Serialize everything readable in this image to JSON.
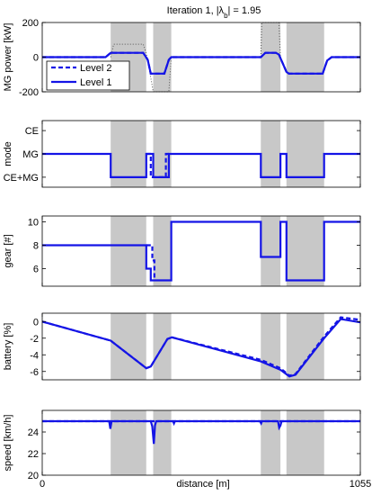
{
  "title": "Iteration 1, |λ_b| = 1.95",
  "xlabel": "distance [m]",
  "xlim": [
    0,
    1055
  ],
  "x_tick_labels": [
    "0",
    "1055"
  ],
  "legend": {
    "entries": [
      "Level 2",
      "Level 1"
    ],
    "placement": "lower-left of panel 1"
  },
  "colors": {
    "series": "#1414e6",
    "shade": "#c8c8c8",
    "reference": "#555555"
  },
  "regions": [
    [
      227,
      345
    ],
    [
      368,
      428
    ],
    [
      725,
      790
    ],
    [
      810,
      935
    ]
  ],
  "chart_data": [
    {
      "type": "line",
      "ylabel": "MG power [kW]",
      "ylim": [
        -200,
        200
      ],
      "yticks": [
        -200,
        0,
        200
      ],
      "series": [
        {
          "name": "Level 1",
          "style": "solid",
          "points": [
            [
              0,
              0
            ],
            [
              210,
              0
            ],
            [
              227,
              25
            ],
            [
              335,
              25
            ],
            [
              350,
              -15
            ],
            [
              360,
              -95
            ],
            [
              405,
              -95
            ],
            [
              420,
              -15
            ],
            [
              428,
              0
            ],
            [
              725,
              0
            ],
            [
              740,
              25
            ],
            [
              775,
              25
            ],
            [
              785,
              15
            ],
            [
              810,
              -85
            ],
            [
              818,
              -95
            ],
            [
              930,
              -95
            ],
            [
              945,
              -20
            ],
            [
              960,
              0
            ],
            [
              1055,
              0
            ]
          ]
        },
        {
          "name": "Level 2",
          "style": "dashed",
          "points": [
            [
              0,
              0
            ],
            [
              210,
              0
            ],
            [
              227,
              25
            ],
            [
              335,
              25
            ],
            [
              350,
              -15
            ],
            [
              360,
              -95
            ],
            [
              405,
              -95
            ],
            [
              420,
              -15
            ],
            [
              428,
              0
            ],
            [
              725,
              0
            ],
            [
              740,
              25
            ],
            [
              775,
              25
            ],
            [
              785,
              15
            ],
            [
              810,
              -85
            ],
            [
              818,
              -95
            ],
            [
              930,
              -95
            ],
            [
              945,
              -20
            ],
            [
              960,
              0
            ],
            [
              1055,
              0
            ]
          ]
        },
        {
          "style": "dotted",
          "color_key": "reference",
          "points": [
            [
              227,
              0
            ],
            [
              237,
              75
            ],
            [
              335,
              75
            ],
            [
              345,
              20
            ],
            [
              350,
              -15
            ],
            [
              368,
              -200
            ],
            [
              420,
              -200
            ],
            [
              428,
              0
            ],
            [
              725,
              0
            ],
            [
              728,
              200
            ],
            [
              785,
              200
            ],
            [
              790,
              0
            ]
          ]
        }
      ]
    },
    {
      "type": "line",
      "ylabel": "mode",
      "categories": [
        "CE+MG",
        "MG",
        "CE"
      ],
      "yticks_text": [
        "CE",
        "MG",
        "CE+MG"
      ],
      "series": [
        {
          "name": "Level 1",
          "style": "solid",
          "points": [
            [
              0,
              1
            ],
            [
              227,
              1
            ],
            [
              227,
              0
            ],
            [
              345,
              0
            ],
            [
              345,
              1
            ],
            [
              368,
              1
            ],
            [
              368,
              0
            ],
            [
              420,
              0
            ],
            [
              420,
              1
            ],
            [
              725,
              1
            ],
            [
              725,
              0
            ],
            [
              790,
              0
            ],
            [
              790,
              1
            ],
            [
              810,
              1
            ],
            [
              810,
              0
            ],
            [
              935,
              0
            ],
            [
              935,
              1
            ],
            [
              1055,
              1
            ]
          ]
        },
        {
          "name": "Level 2",
          "style": "dashed",
          "points": [
            [
              345,
              1
            ],
            [
              360,
              1
            ],
            [
              360,
              0
            ],
            [
              410,
              0
            ],
            [
              410,
              1
            ],
            [
              428,
              1
            ]
          ]
        }
      ]
    },
    {
      "type": "line",
      "ylabel": "gear [#]",
      "ylim": [
        4.5,
        10.5
      ],
      "yticks": [
        6,
        8,
        10
      ],
      "series": [
        {
          "name": "Level 1",
          "style": "solid",
          "points": [
            [
              0,
              8
            ],
            [
              345,
              8
            ],
            [
              345,
              6
            ],
            [
              360,
              6
            ],
            [
              360,
              5
            ],
            [
              368,
              5
            ],
            [
              428,
              5
            ],
            [
              428,
              10
            ],
            [
              725,
              10
            ],
            [
              725,
              7
            ],
            [
              790,
              7
            ],
            [
              790,
              10
            ],
            [
              810,
              10
            ],
            [
              810,
              5
            ],
            [
              935,
              5
            ],
            [
              935,
              10
            ],
            [
              1055,
              10
            ]
          ]
        },
        {
          "name": "Level 2",
          "style": "dashed",
          "points": [
            [
              345,
              8
            ],
            [
              365,
              8
            ],
            [
              365,
              6.7
            ],
            [
              372,
              6.7
            ],
            [
              372,
              5
            ]
          ]
        }
      ]
    },
    {
      "type": "line",
      "ylabel": "battery [%]",
      "ylim": [
        -7,
        1
      ],
      "yticks": [
        -6,
        -4,
        -2,
        0
      ],
      "series": [
        {
          "name": "Level 1",
          "style": "solid",
          "points": [
            [
              0,
              0
            ],
            [
              227,
              -2.3
            ],
            [
              345,
              -5.6
            ],
            [
              360,
              -5.4
            ],
            [
              415,
              -2.1
            ],
            [
              430,
              -1.9
            ],
            [
              725,
              -4.8
            ],
            [
              790,
              -5.8
            ],
            [
              820,
              -6.6
            ],
            [
              840,
              -6.4
            ],
            [
              935,
              -2
            ],
            [
              990,
              0.3
            ],
            [
              1055,
              -0.1
            ]
          ]
        },
        {
          "name": "Level 2",
          "style": "dashed",
          "points": [
            [
              0,
              0
            ],
            [
              227,
              -2.3
            ],
            [
              345,
              -5.6
            ],
            [
              360,
              -5.4
            ],
            [
              415,
              -2.1
            ],
            [
              430,
              -1.9
            ],
            [
              725,
              -4.6
            ],
            [
              790,
              -5.6
            ],
            [
              820,
              -6.5
            ],
            [
              840,
              -6.3
            ],
            [
              935,
              -1.8
            ],
            [
              990,
              0.5
            ],
            [
              1055,
              0.2
            ]
          ]
        }
      ]
    },
    {
      "type": "line",
      "ylabel": "speed [km/h]",
      "ylim": [
        20,
        26
      ],
      "yticks": [
        20,
        22,
        24
      ],
      "series": [
        {
          "name": "Level 1",
          "style": "solid",
          "points": [
            [
              0,
              25
            ],
            [
              222,
              25
            ],
            [
              226,
              24.3
            ],
            [
              230,
              25
            ],
            [
              360,
              25
            ],
            [
              365,
              24.5
            ],
            [
              370,
              22.9
            ],
            [
              374,
              24.6
            ],
            [
              378,
              25
            ],
            [
              434,
              25
            ],
            [
              437,
              24.8
            ],
            [
              440,
              25
            ],
            [
              722,
              25
            ],
            [
              726,
              24.8
            ],
            [
              729,
              25
            ],
            [
              782,
              25
            ],
            [
              786,
              24.4
            ],
            [
              790,
              24.6
            ],
            [
              794,
              25
            ],
            [
              1055,
              25
            ]
          ]
        },
        {
          "name": "Level 2",
          "style": "dashed",
          "points": [
            [
              0,
              25
            ],
            [
              1055,
              25
            ]
          ]
        }
      ]
    }
  ]
}
